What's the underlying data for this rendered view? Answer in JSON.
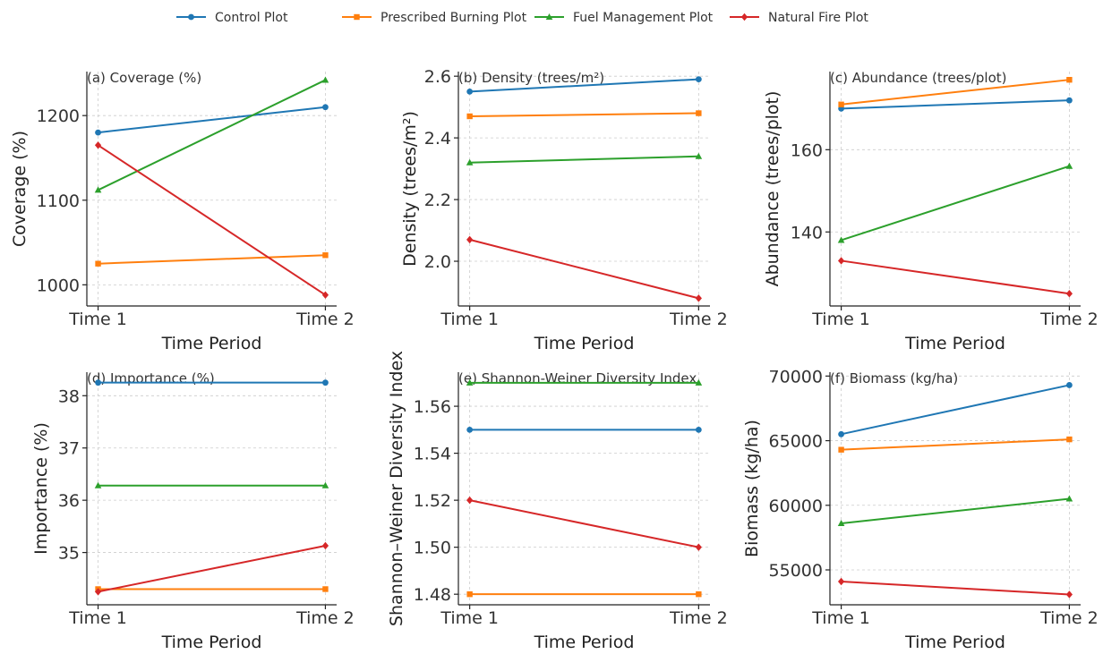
{
  "chart_data": [
    {
      "type": "line",
      "title": "(a) Coverage (%)",
      "xlabel": "Time Period",
      "ylabel": "Coverage (%)",
      "categories": [
        "Time 1",
        "Time 2"
      ],
      "ylim": [
        975,
        1252
      ],
      "yticks": [
        1000,
        1100,
        1200
      ],
      "grid": true,
      "series": [
        {
          "name": "Control Plot",
          "values": [
            1180,
            1210
          ]
        },
        {
          "name": "Prescribed Burning Plot",
          "values": [
            1025,
            1035
          ]
        },
        {
          "name": "Fuel Management Plot",
          "values": [
            1112,
            1242
          ]
        },
        {
          "name": "Natural Fire Plot",
          "values": [
            1165,
            988
          ]
        }
      ]
    },
    {
      "type": "line",
      "title": "(b) Density (trees/m²)",
      "xlabel": "Time Period",
      "ylabel": "Density (trees/m²)",
      "categories": [
        "Time 1",
        "Time 2"
      ],
      "ylim": [
        1.855,
        2.615
      ],
      "yticks": [
        2.0,
        2.2,
        2.4,
        2.6
      ],
      "ytick_labels": [
        "2.0",
        "2.2",
        "2.4",
        "2.6"
      ],
      "grid": true,
      "series": [
        {
          "name": "Control Plot",
          "values": [
            2.55,
            2.59
          ]
        },
        {
          "name": "Prescribed Burning Plot",
          "values": [
            2.47,
            2.48
          ]
        },
        {
          "name": "Fuel Management Plot",
          "values": [
            2.32,
            2.34
          ]
        },
        {
          "name": "Natural Fire Plot",
          "values": [
            2.07,
            1.88
          ]
        }
      ]
    },
    {
      "type": "line",
      "title": "(c) Abundance (trees/plot)",
      "xlabel": "Time Period",
      "ylabel": "Abundance (trees/plot)",
      "categories": [
        "Time 1",
        "Time 2"
      ],
      "ylim": [
        122,
        179
      ],
      "yticks": [
        140,
        160
      ],
      "grid": true,
      "series": [
        {
          "name": "Control Plot",
          "values": [
            170,
            172
          ]
        },
        {
          "name": "Prescribed Burning Plot",
          "values": [
            171,
            177
          ]
        },
        {
          "name": "Fuel Management Plot",
          "values": [
            138,
            156
          ]
        },
        {
          "name": "Natural Fire Plot",
          "values": [
            133,
            125
          ]
        }
      ]
    },
    {
      "type": "line",
      "title": "(d) Importance (%)",
      "xlabel": "Time Period",
      "ylabel": "Importance (%)",
      "categories": [
        "Time 1",
        "Time 2"
      ],
      "ylim": [
        34.0,
        38.45
      ],
      "yticks": [
        35,
        36,
        37,
        38
      ],
      "grid": true,
      "series": [
        {
          "name": "Control Plot",
          "values": [
            38.25,
            38.25
          ]
        },
        {
          "name": "Prescribed Burning Plot",
          "values": [
            34.3,
            34.3
          ]
        },
        {
          "name": "Fuel Management Plot",
          "values": [
            36.28,
            36.28
          ]
        },
        {
          "name": "Natural Fire Plot",
          "values": [
            34.25,
            35.13
          ]
        }
      ]
    },
    {
      "type": "line",
      "title": "(e) Shannon-Weiner Diversity Index",
      "xlabel": "Time Period",
      "ylabel": "Shannon–Weiner Diversity Index",
      "categories": [
        "Time 1",
        "Time 2"
      ],
      "ylim": [
        1.4755,
        1.5745
      ],
      "yticks": [
        1.48,
        1.5,
        1.52,
        1.54,
        1.56
      ],
      "ytick_labels": [
        "1.48",
        "1.50",
        "1.52",
        "1.54",
        "1.56"
      ],
      "grid": true,
      "series": [
        {
          "name": "Control Plot",
          "values": [
            1.55,
            1.55
          ]
        },
        {
          "name": "Prescribed Burning Plot",
          "values": [
            1.48,
            1.48
          ]
        },
        {
          "name": "Fuel Management Plot",
          "values": [
            1.57,
            1.57
          ]
        },
        {
          "name": "Natural Fire Plot",
          "values": [
            1.52,
            1.5
          ]
        }
      ]
    },
    {
      "type": "line",
      "title": "(f) Biomass (kg/ha)",
      "xlabel": "Time Period",
      "ylabel": "Biomass (kg/ha)",
      "categories": [
        "Time 1",
        "Time 2"
      ],
      "ylim": [
        52300,
        70300
      ],
      "yticks": [
        55000,
        60000,
        65000,
        70000
      ],
      "grid": true,
      "series": [
        {
          "name": "Control Plot",
          "values": [
            65500,
            69300
          ]
        },
        {
          "name": "Prescribed Burning Plot",
          "values": [
            64300,
            65100
          ]
        },
        {
          "name": "Fuel Management Plot",
          "values": [
            58600,
            60500
          ]
        },
        {
          "name": "Natural Fire Plot",
          "values": [
            54100,
            53100
          ]
        }
      ]
    }
  ],
  "legend": {
    "placement": "top-center",
    "items": [
      {
        "label": "Control Plot",
        "color": "#1f77b4",
        "marker": "circle"
      },
      {
        "label": "Prescribed Burning Plot",
        "color": "#ff7f0e",
        "marker": "square"
      },
      {
        "label": "Fuel Management Plot",
        "color": "#2ca02c",
        "marker": "triangle"
      },
      {
        "label": "Natural Fire Plot",
        "color": "#d62728",
        "marker": "diamond"
      }
    ]
  }
}
